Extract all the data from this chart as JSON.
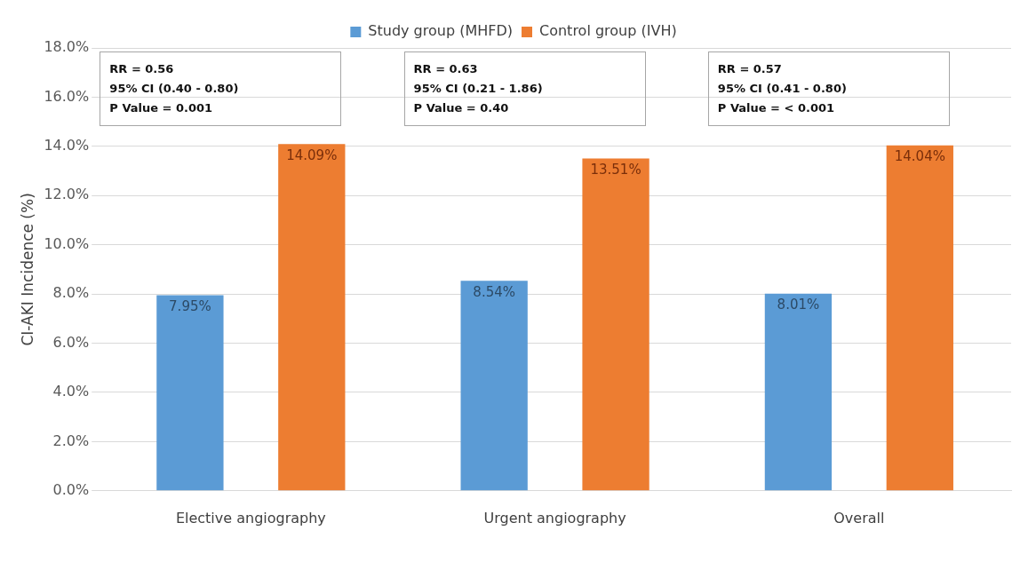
{
  "chart_data": {
    "type": "bar",
    "ylabel": "CI-AKI Incidence (%)",
    "categories": [
      "Elective angiography",
      "Urgent angiography",
      "Overall"
    ],
    "series": [
      {
        "name": "Study group (MHFD)",
        "color": "#5b9bd5",
        "values": [
          7.95,
          8.54,
          8.01
        ],
        "value_labels": [
          "7.95%",
          "8.54%",
          "8.01%"
        ]
      },
      {
        "name": "Control group (IVH)",
        "color": "#ed7d31",
        "values": [
          14.09,
          13.51,
          14.04
        ],
        "value_labels": [
          "14.09%",
          "13.51%",
          "14.04%"
        ]
      }
    ],
    "ylim": [
      0,
      18
    ],
    "yticks": [
      {
        "value": 0,
        "label": "0.0%"
      },
      {
        "value": 2,
        "label": "2.0%"
      },
      {
        "value": 4,
        "label": "4.0%"
      },
      {
        "value": 6,
        "label": "6.0%"
      },
      {
        "value": 8,
        "label": "8.0%"
      },
      {
        "value": 10,
        "label": "10.0%"
      },
      {
        "value": 12,
        "label": "12.0%"
      },
      {
        "value": 14,
        "label": "14.0%"
      },
      {
        "value": 16,
        "label": "16.0%"
      },
      {
        "value": 18,
        "label": "18.0%"
      }
    ],
    "grid": "y",
    "legend": "top",
    "annotations": [
      "RR = 0.56\n95% CI (0.40 - 0.80)\nP Value = 0.001",
      "RR = 0.63\n95% CI (0.21 - 1.86)\nP Value = 0.40",
      "RR = 0.57\n95% CI (0.41 - 0.80)\nP Value = < 0.001"
    ]
  }
}
